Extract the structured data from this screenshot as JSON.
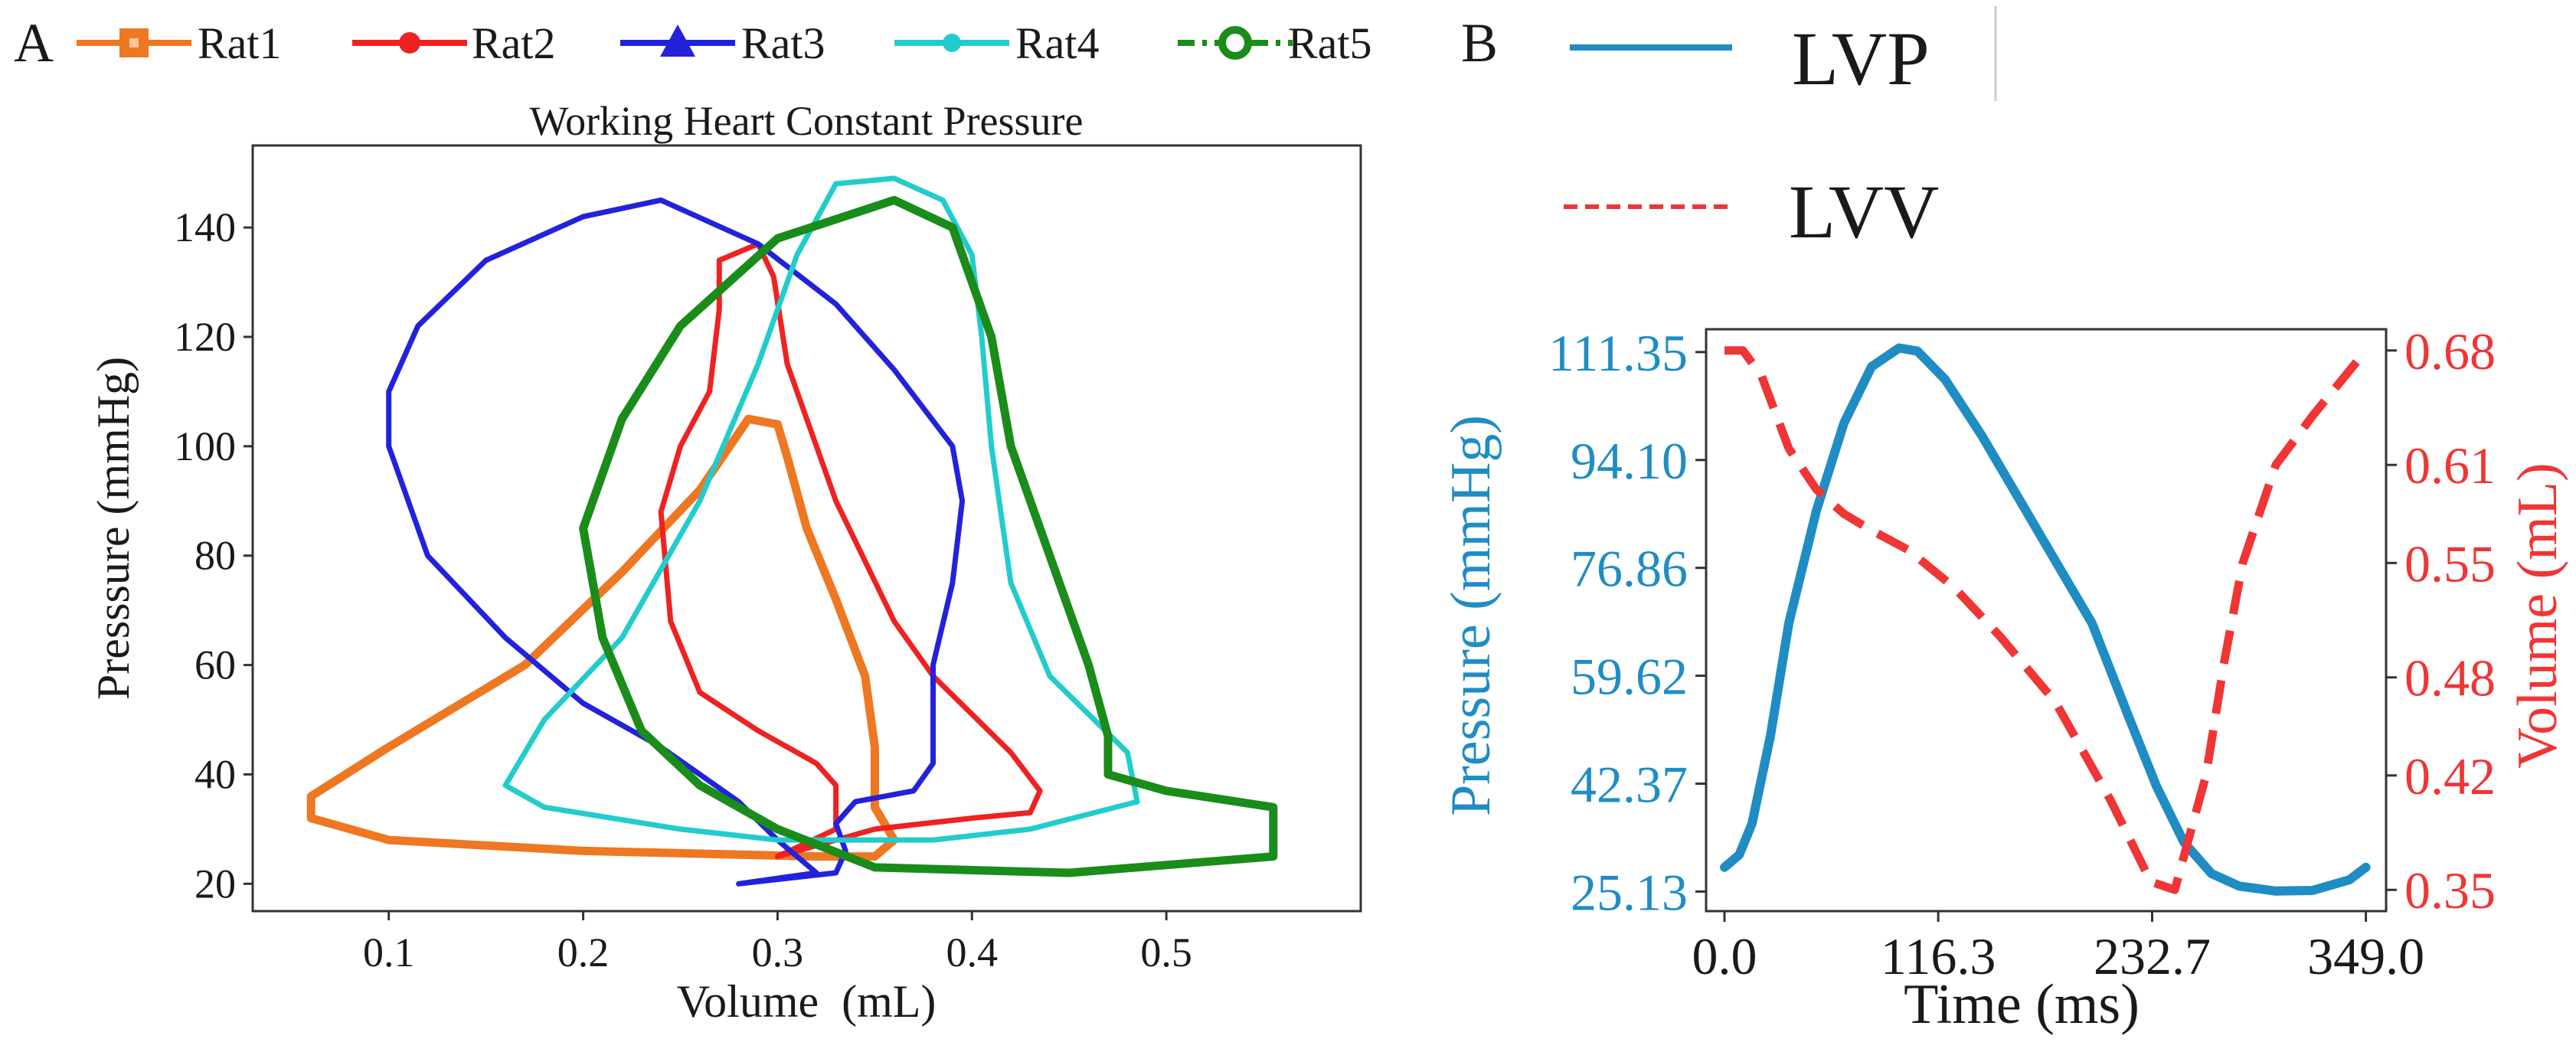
{
  "colors": {
    "rat1": "#ee7722",
    "rat2": "#ee2222",
    "rat3": "#2222dd",
    "rat4": "#22cccc",
    "rat5": "#1a8c1a",
    "lvp": "#1f8dc4",
    "lvv": "#f03535",
    "axis": "#333333",
    "text": "#1a1a1a",
    "panel_b_divider": "#cccccc"
  },
  "chart_data": [
    {
      "panel": "A",
      "type": "line",
      "title": "Working Heart Constant Pressure",
      "xlabel": "Volume  (mL)",
      "ylabel": "Presssure (mmHg)",
      "xlim": [
        0.03,
        0.6
      ],
      "ylim": [
        15,
        155
      ],
      "xticks": [
        0.1,
        0.2,
        0.3,
        0.4,
        0.5
      ],
      "xtick_labels": [
        "0.1",
        "0.2",
        "0.3",
        "0.4",
        "0.5"
      ],
      "yticks": [
        20,
        40,
        60,
        80,
        100,
        120,
        140
      ],
      "ytick_labels": [
        "20",
        "40",
        "60",
        "80",
        "100",
        "120",
        "140"
      ],
      "legend_location": "above plot",
      "series": [
        {
          "name": "Rat1",
          "key": "rat1",
          "marker": "square",
          "points": [
            [
              0.32,
              25
            ],
            [
              0.2,
              26
            ],
            [
              0.1,
              28
            ],
            [
              0.06,
              32
            ],
            [
              0.06,
              36
            ],
            [
              0.1,
              45
            ],
            [
              0.17,
              60
            ],
            [
              0.22,
              77
            ],
            [
              0.26,
              92
            ],
            [
              0.285,
              105
            ],
            [
              0.3,
              104
            ],
            [
              0.305,
              98
            ],
            [
              0.315,
              85
            ],
            [
              0.33,
              72
            ],
            [
              0.345,
              58
            ],
            [
              0.35,
              45
            ],
            [
              0.35,
              34
            ],
            [
              0.36,
              28
            ],
            [
              0.35,
              25
            ],
            [
              0.32,
              25
            ]
          ]
        },
        {
          "name": "Rat2",
          "key": "rat2",
          "marker": "circle",
          "points": [
            [
              0.3,
              25
            ],
            [
              0.35,
              30
            ],
            [
              0.4,
              32
            ],
            [
              0.43,
              33
            ],
            [
              0.435,
              37
            ],
            [
              0.42,
              44
            ],
            [
              0.4,
              51
            ],
            [
              0.38,
              58
            ],
            [
              0.36,
              68
            ],
            [
              0.33,
              90
            ],
            [
              0.305,
              115
            ],
            [
              0.298,
              131
            ],
            [
              0.29,
              137
            ],
            [
              0.27,
              134
            ],
            [
              0.27,
              125
            ],
            [
              0.265,
              110
            ],
            [
              0.25,
              100
            ],
            [
              0.24,
              88
            ],
            [
              0.245,
              68
            ],
            [
              0.26,
              55
            ],
            [
              0.29,
              48
            ],
            [
              0.32,
              42
            ],
            [
              0.33,
              38
            ],
            [
              0.33,
              30
            ],
            [
              0.3,
              25
            ]
          ]
        },
        {
          "name": "Rat3",
          "key": "rat3",
          "marker": "triangle",
          "points": [
            [
              0.28,
              20
            ],
            [
              0.33,
              22
            ],
            [
              0.335,
              26
            ],
            [
              0.33,
              31
            ],
            [
              0.34,
              35
            ],
            [
              0.37,
              37
            ],
            [
              0.38,
              42
            ],
            [
              0.38,
              60
            ],
            [
              0.39,
              75
            ],
            [
              0.395,
              90
            ],
            [
              0.39,
              100
            ],
            [
              0.36,
              114
            ],
            [
              0.33,
              126
            ],
            [
              0.29,
              137
            ],
            [
              0.24,
              145
            ],
            [
              0.2,
              142
            ],
            [
              0.15,
              134
            ],
            [
              0.115,
              122
            ],
            [
              0.1,
              110
            ],
            [
              0.1,
              100
            ],
            [
              0.12,
              80
            ],
            [
              0.16,
              65
            ],
            [
              0.2,
              53
            ],
            [
              0.24,
              45
            ],
            [
              0.28,
              35
            ],
            [
              0.3,
              28
            ],
            [
              0.32,
              22
            ],
            [
              0.28,
              20
            ]
          ]
        },
        {
          "name": "Rat4",
          "key": "rat4",
          "marker": "circle",
          "points": [
            [
              0.25,
              30
            ],
            [
              0.18,
              34
            ],
            [
              0.16,
              38
            ],
            [
              0.18,
              50
            ],
            [
              0.22,
              65
            ],
            [
              0.26,
              90
            ],
            [
              0.29,
              115
            ],
            [
              0.31,
              135
            ],
            [
              0.33,
              148
            ],
            [
              0.36,
              149
            ],
            [
              0.385,
              145
            ],
            [
              0.4,
              135
            ],
            [
              0.405,
              120
            ],
            [
              0.41,
              100
            ],
            [
              0.42,
              75
            ],
            [
              0.44,
              58
            ],
            [
              0.48,
              44
            ],
            [
              0.485,
              35
            ],
            [
              0.43,
              30
            ],
            [
              0.38,
              28
            ],
            [
              0.3,
              28
            ],
            [
              0.25,
              30
            ]
          ]
        },
        {
          "name": "Rat5",
          "key": "rat5",
          "marker": "circle-dashdot",
          "points": [
            [
              0.35,
              23
            ],
            [
              0.45,
              22
            ],
            [
              0.52,
              24
            ],
            [
              0.555,
              25
            ],
            [
              0.555,
              34
            ],
            [
              0.5,
              37
            ],
            [
              0.47,
              40
            ],
            [
              0.47,
              47
            ],
            [
              0.46,
              60
            ],
            [
              0.44,
              80
            ],
            [
              0.42,
              100
            ],
            [
              0.41,
              120
            ],
            [
              0.39,
              140
            ],
            [
              0.36,
              145
            ],
            [
              0.3,
              138
            ],
            [
              0.25,
              122
            ],
            [
              0.22,
              105
            ],
            [
              0.2,
              85
            ],
            [
              0.21,
              65
            ],
            [
              0.23,
              48
            ],
            [
              0.26,
              38
            ],
            [
              0.3,
              30
            ],
            [
              0.35,
              23
            ]
          ]
        }
      ]
    },
    {
      "panel": "B",
      "type": "line",
      "xlabel": "Time (ms)",
      "ylabel_left": "Pressure (mmHg)",
      "ylabel_right": "Volume (mL)",
      "xlim": [
        -10,
        360
      ],
      "ylim_left": [
        22,
        115
      ],
      "ylim_right": [
        0.337,
        0.693
      ],
      "xticks": [
        0.0,
        116.3,
        232.7,
        349.0
      ],
      "xtick_labels": [
        "0.0",
        "116.3",
        "232.7",
        "349.0"
      ],
      "yticks_left": [
        25.13,
        42.37,
        59.62,
        76.86,
        94.1,
        111.35
      ],
      "ytick_labels_left": [
        "25.13",
        "42.37",
        "59.62",
        "76.86",
        "94.10",
        "111.35"
      ],
      "yticks_right": [
        0.35,
        0.42,
        0.48,
        0.55,
        0.61,
        0.68
      ],
      "ytick_labels_right": [
        "0.35",
        "0.42",
        "0.48",
        "0.55",
        "0.61",
        "0.68"
      ],
      "legend_location": "above plot",
      "series": [
        {
          "name": "LVP",
          "key": "lvp",
          "axis": "left",
          "style": "solid",
          "x": [
            0,
            8,
            15,
            25,
            35,
            50,
            65,
            80,
            95,
            105,
            120,
            140,
            160,
            180,
            200,
            220,
            235,
            250,
            265,
            280,
            300,
            320,
            340,
            349
          ],
          "y": [
            29,
            31,
            36,
            50,
            68,
            86,
            100,
            109,
            112,
            111.5,
            107,
            98,
            88,
            78,
            68,
            53,
            42,
            33,
            28,
            26,
            25.2,
            25.3,
            27,
            29
          ]
        },
        {
          "name": "LVV",
          "key": "lvv",
          "axis": "right",
          "style": "dashed",
          "x": [
            0,
            10,
            20,
            35,
            50,
            65,
            80,
            100,
            125,
            150,
            180,
            210,
            232,
            245,
            262,
            272,
            282,
            300,
            320,
            349
          ],
          "y": [
            0.68,
            0.68,
            0.665,
            0.62,
            0.595,
            0.58,
            0.57,
            0.558,
            0.535,
            0.505,
            0.465,
            0.405,
            0.355,
            0.35,
            0.42,
            0.49,
            0.55,
            0.61,
            0.64,
            0.68
          ]
        }
      ]
    }
  ],
  "panel_a": {
    "letter": "A"
  },
  "panel_b": {
    "letter": "B"
  }
}
